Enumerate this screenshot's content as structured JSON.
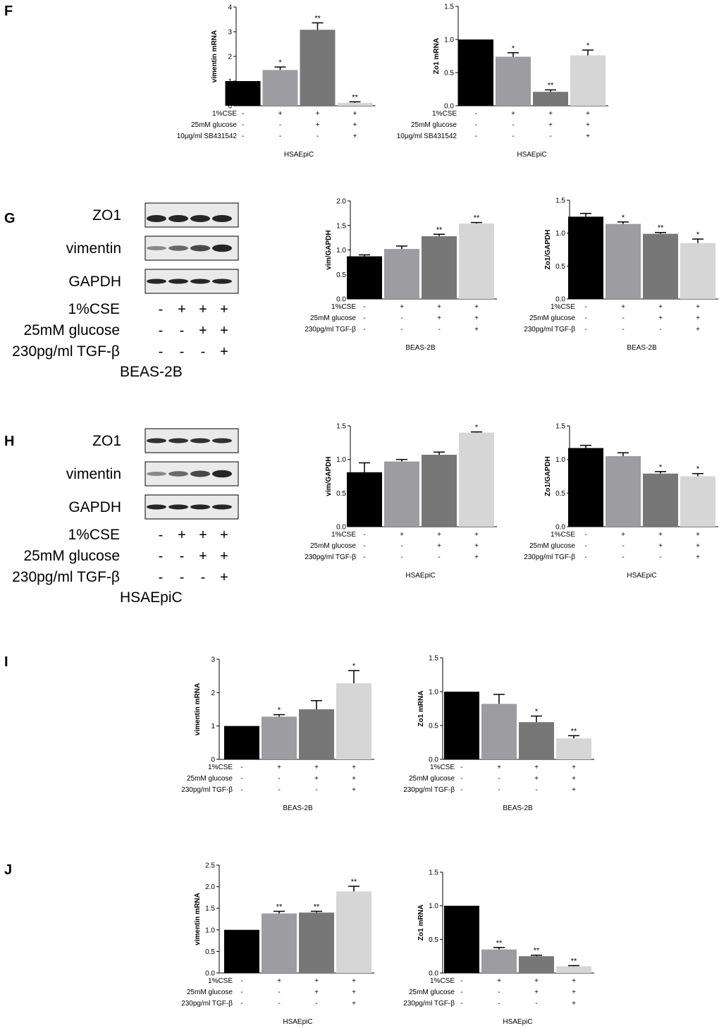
{
  "panels": {
    "F": "F",
    "G": "G",
    "H": "H",
    "I": "I",
    "J": "J"
  },
  "colors": {
    "bar_black": "#000000",
    "bar_mid_light": "#9d9da1",
    "bar_dark_gray": "#777777",
    "bar_light": "#d6d6d6"
  },
  "blots": [
    {
      "panel": "G",
      "rows": [
        "ZO1",
        "vimentin",
        "GAPDH"
      ],
      "conditions": [
        {
          "label": "1%CSE",
          "signs": [
            "-",
            "+",
            "+",
            "+"
          ]
        },
        {
          "label": "25mM glucose",
          "signs": [
            "-",
            "-",
            "+",
            "+"
          ]
        },
        {
          "label": "230pg/ml TGF-β",
          "signs": [
            "-",
            "-",
            "-",
            "+"
          ]
        }
      ],
      "cell": "BEAS-2B"
    },
    {
      "panel": "H",
      "rows": [
        "ZO1",
        "vimentin",
        "GAPDH"
      ],
      "conditions": [
        {
          "label": "1%CSE",
          "signs": [
            "-",
            "+",
            "+",
            "+"
          ]
        },
        {
          "label": "25mM glucose",
          "signs": [
            "-",
            "-",
            "+",
            "+"
          ]
        },
        {
          "label": "230pg/ml TGF-β",
          "signs": [
            "-",
            "-",
            "-",
            "+"
          ]
        }
      ],
      "cell": "HSAEpiC"
    }
  ],
  "chart_data": [
    {
      "panel": "F",
      "type": "bar",
      "ylabel": "vimentin mRNA",
      "ylim": [
        0,
        4
      ],
      "yticks": [
        "0",
        "1",
        "2",
        "3",
        "4"
      ],
      "values": [
        1.0,
        1.45,
        3.08,
        0.12
      ],
      "errors": [
        0,
        0.12,
        0.28,
        0.04
      ],
      "annotations": [
        "",
        "*",
        "**",
        "**"
      ],
      "conditions": [
        {
          "label": "1%CSE",
          "signs": [
            "-",
            "+",
            "+",
            "+"
          ]
        },
        {
          "label": "25mM glucose",
          "signs": [
            "-",
            "-",
            "+",
            "+"
          ]
        },
        {
          "label": "10μg/ml SB431542",
          "signs": [
            "-",
            "-",
            "-",
            "+"
          ]
        }
      ],
      "xlabel": "HSAEpiC"
    },
    {
      "panel": "F",
      "type": "bar",
      "ylabel": "Zo1 mRNA",
      "ylim": [
        0,
        1.5
      ],
      "yticks": [
        "0.0",
        "0.5",
        "1.0",
        "1.5"
      ],
      "values": [
        1.0,
        0.74,
        0.21,
        0.76
      ],
      "errors": [
        0,
        0.06,
        0.03,
        0.08
      ],
      "annotations": [
        "",
        "*",
        "**",
        "*"
      ],
      "conditions": [
        {
          "label": "1%CSE",
          "signs": [
            "-",
            "+",
            "+",
            "+"
          ]
        },
        {
          "label": "25mM glucose",
          "signs": [
            "-",
            "-",
            "+",
            "+"
          ]
        },
        {
          "label": "10μg/ml SB431542",
          "signs": [
            "-",
            "-",
            "-",
            "+"
          ]
        }
      ],
      "xlabel": "HSAEpiC"
    },
    {
      "panel": "G",
      "type": "bar",
      "ylabel": "vim/GAPDH",
      "ylim": [
        0,
        2.0
      ],
      "yticks": [
        "0.0",
        "0.5",
        "1.0",
        "1.5",
        "2.0"
      ],
      "values": [
        0.87,
        1.02,
        1.28,
        1.54
      ],
      "errors": [
        0.03,
        0.06,
        0.04,
        0.02
      ],
      "annotations": [
        "",
        "",
        "**",
        "**"
      ],
      "conditions": [
        {
          "label": "1%CSE",
          "signs": [
            "-",
            "+",
            "+",
            "+"
          ]
        },
        {
          "label": "25mM glucose",
          "signs": [
            "-",
            "-",
            "+",
            "+"
          ]
        },
        {
          "label": "230pg/ml TGF-β",
          "signs": [
            "-",
            "-",
            "-",
            "+"
          ]
        }
      ],
      "xlabel": "BEAS-2B"
    },
    {
      "panel": "G",
      "type": "bar",
      "ylabel": "Zo1/GAPDH",
      "ylim": [
        0,
        1.5
      ],
      "yticks": [
        "0.0",
        "0.5",
        "1.0",
        "1.5"
      ],
      "values": [
        1.25,
        1.14,
        0.99,
        0.85
      ],
      "errors": [
        0.05,
        0.03,
        0.02,
        0.06
      ],
      "annotations": [
        "",
        "*",
        "**",
        "*"
      ],
      "conditions": [
        {
          "label": "1%CSE",
          "signs": [
            "-",
            "+",
            "+",
            "+"
          ]
        },
        {
          "label": "25mM glucose",
          "signs": [
            "-",
            "-",
            "+",
            "+"
          ]
        },
        {
          "label": "230pg/ml TGF-β",
          "signs": [
            "-",
            "-",
            "-",
            "+"
          ]
        }
      ],
      "xlabel": "BEAS-2B"
    },
    {
      "panel": "H",
      "type": "bar",
      "ylabel": "vim/GAPDH",
      "ylim": [
        0,
        1.5
      ],
      "yticks": [
        "0.0",
        "0.5",
        "1.0",
        "1.5"
      ],
      "values": [
        0.81,
        0.97,
        1.07,
        1.4
      ],
      "errors": [
        0.14,
        0.03,
        0.04,
        0.01
      ],
      "annotations": [
        "",
        "",
        "",
        "*"
      ],
      "conditions": [
        {
          "label": "1%CSE",
          "signs": [
            "-",
            "+",
            "+",
            "+"
          ]
        },
        {
          "label": "25mM glucose",
          "signs": [
            "-",
            "-",
            "+",
            "+"
          ]
        },
        {
          "label": "230pg/ml TGF-β",
          "signs": [
            "-",
            "-",
            "-",
            "+"
          ]
        }
      ],
      "xlabel": "HSAEpiC"
    },
    {
      "panel": "H",
      "type": "bar",
      "ylabel": "Zo1/GAPDH",
      "ylim": [
        0,
        1.5
      ],
      "yticks": [
        "0.0",
        "0.5",
        "1.0",
        "1.5"
      ],
      "values": [
        1.17,
        1.05,
        0.79,
        0.75
      ],
      "errors": [
        0.04,
        0.05,
        0.03,
        0.04
      ],
      "annotations": [
        "",
        "",
        "*",
        "*"
      ],
      "conditions": [
        {
          "label": "1%CSE",
          "signs": [
            "-",
            "+",
            "+",
            "+"
          ]
        },
        {
          "label": "25mM glucose",
          "signs": [
            "-",
            "-",
            "+",
            "+"
          ]
        },
        {
          "label": "230pg/ml TGF-β",
          "signs": [
            "-",
            "-",
            "-",
            "+"
          ]
        }
      ],
      "xlabel": "HSAEpiC"
    },
    {
      "panel": "I",
      "type": "bar",
      "ylabel": "vimentin mRNA",
      "ylim": [
        0,
        3
      ],
      "yticks": [
        "0",
        "1",
        "2",
        "3"
      ],
      "values": [
        1.0,
        1.28,
        1.5,
        2.28
      ],
      "errors": [
        0,
        0.06,
        0.26,
        0.38
      ],
      "annotations": [
        "",
        "*",
        "",
        "*"
      ],
      "conditions": [
        {
          "label": "1%CSE",
          "signs": [
            "-",
            "+",
            "+",
            "+"
          ]
        },
        {
          "label": "25mM glucose",
          "signs": [
            "-",
            "-",
            "+",
            "+"
          ]
        },
        {
          "label": "230pg/ml TGF-β",
          "signs": [
            "-",
            "-",
            "-",
            "+"
          ]
        }
      ],
      "xlabel": "BEAS-2B"
    },
    {
      "panel": "I",
      "type": "bar",
      "ylabel": "Zo1 mRNA",
      "ylim": [
        0,
        1.5
      ],
      "yticks": [
        "0.0",
        "0.5",
        "1.0",
        "1.5"
      ],
      "values": [
        1.0,
        0.82,
        0.55,
        0.31
      ],
      "errors": [
        0,
        0.14,
        0.09,
        0.04
      ],
      "annotations": [
        "",
        "",
        "*",
        "**"
      ],
      "conditions": [
        {
          "label": "1%CSE",
          "signs": [
            "-",
            "+",
            "+",
            "+"
          ]
        },
        {
          "label": "25mM glucose",
          "signs": [
            "-",
            "-",
            "+",
            "+"
          ]
        },
        {
          "label": "230pg/ml TGF-β",
          "signs": [
            "-",
            "-",
            "-",
            "+"
          ]
        }
      ],
      "xlabel": "BEAS-2B"
    },
    {
      "panel": "J",
      "type": "bar",
      "ylabel": "vimentin mRNA",
      "ylim": [
        0,
        2.5
      ],
      "yticks": [
        "0.0",
        "0.5",
        "1.0",
        "1.5",
        "2.0",
        "2.5"
      ],
      "values": [
        1.0,
        1.38,
        1.4,
        1.89
      ],
      "errors": [
        0,
        0.05,
        0.03,
        0.12
      ],
      "annotations": [
        "",
        "**",
        "**",
        "**"
      ],
      "conditions": [
        {
          "label": "1%CSE",
          "signs": [
            "-",
            "+",
            "+",
            "+"
          ]
        },
        {
          "label": "25mM glucose",
          "signs": [
            "-",
            "-",
            "+",
            "+"
          ]
        },
        {
          "label": "230pg/ml TGF-β",
          "signs": [
            "-",
            "-",
            "-",
            "+"
          ]
        }
      ],
      "xlabel": "HSAEpiC"
    },
    {
      "panel": "J",
      "type": "bar",
      "ylabel": "Zo1 mRNA",
      "ylim": [
        0,
        1.5
      ],
      "yticks": [
        "0.0",
        "0.5",
        "1.0",
        "1.5"
      ],
      "values": [
        1.0,
        0.35,
        0.25,
        0.1
      ],
      "errors": [
        0,
        0.03,
        0.015,
        0.01
      ],
      "annotations": [
        "",
        "**",
        "**",
        "**"
      ],
      "conditions": [
        {
          "label": "1%CSE",
          "signs": [
            "-",
            "+",
            "+",
            "+"
          ]
        },
        {
          "label": "25mM glucose",
          "signs": [
            "-",
            "-",
            "+",
            "+"
          ]
        },
        {
          "label": "230pg/ml TGF-β",
          "signs": [
            "-",
            "-",
            "-",
            "+"
          ]
        }
      ],
      "xlabel": "HSAEpiC"
    }
  ]
}
